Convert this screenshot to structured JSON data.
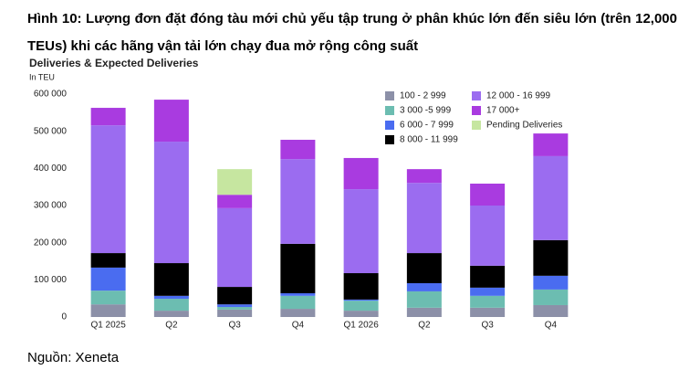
{
  "document": {
    "caption": "Hình 10: Lượng đơn đặt đóng tàu mới chủ yếu tập trung ở phân khúc lớn đến siêu lớn (trên 12,000 TEUs) khi các hãng vận tải lớn chạy đua mở rộng công suất",
    "source": "Nguồn: Xeneta"
  },
  "chart_data": {
    "type": "stacked_bar",
    "title": "Deliveries & Expected Deliveries",
    "subtitle": "In TEU",
    "categories": [
      "Q1 2025",
      "Q2",
      "Q3",
      "Q4",
      "Q1 2026",
      "Q2",
      "Q3",
      "Q4"
    ],
    "series": [
      {
        "name": "100 - 2 999",
        "color": "#8c90a8",
        "values": [
          34000,
          17000,
          20000,
          22000,
          17000,
          25000,
          25000,
          32000
        ]
      },
      {
        "name": "3 000 -5 999",
        "color": "#6cbdb1",
        "values": [
          37000,
          32000,
          7000,
          35000,
          27000,
          44000,
          32000,
          42000
        ]
      },
      {
        "name": "6 000 - 7 999",
        "color": "#4a6cf0",
        "values": [
          62000,
          8000,
          7000,
          7000,
          3000,
          22000,
          22000,
          37000
        ]
      },
      {
        "name": "8 000 - 11 999",
        "color": "#000000",
        "values": [
          39000,
          88000,
          47000,
          133000,
          71000,
          81000,
          59000,
          96000
        ]
      },
      {
        "name": "12 000 - 16 999",
        "color": "#9b6cf0",
        "values": [
          344000,
          327000,
          212000,
          228000,
          226000,
          189000,
          162000,
          226000
        ]
      },
      {
        "name": "17 000+",
        "color": "#a93be0",
        "values": [
          47000,
          113000,
          36000,
          52000,
          84000,
          37000,
          59000,
          61000
        ]
      },
      {
        "name": "Pending Deliveries",
        "color": "#c6e6a0",
        "values": [
          0,
          0,
          69000,
          0,
          0,
          0,
          0,
          0
        ]
      }
    ],
    "ylim": [
      0,
      600000
    ],
    "yticks": [
      {
        "value": 0,
        "label": "0"
      },
      {
        "value": 100000,
        "label": "100 000"
      },
      {
        "value": 200000,
        "label": "200 000"
      },
      {
        "value": 300000,
        "label": "300 000"
      },
      {
        "value": 400000,
        "label": "400 000"
      },
      {
        "value": 500000,
        "label": "500 000"
      },
      {
        "value": 600000,
        "label": "600 000"
      }
    ]
  }
}
